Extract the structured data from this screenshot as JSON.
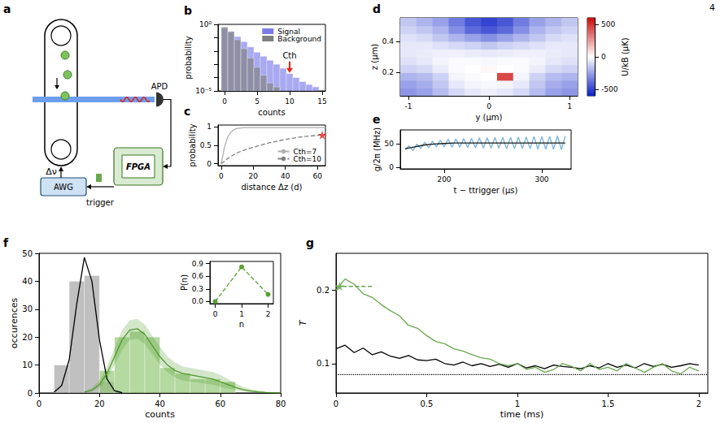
{
  "page_number": "4",
  "diagram": {
    "panel": "a",
    "labels": {
      "detector": "APD",
      "controller": "FPGA",
      "generator": "AWG",
      "trigger": "trigger",
      "detuning": "Δν"
    }
  },
  "chart_data": [
    {
      "panel": "b",
      "type": "histogram",
      "log": "y",
      "x_label": "counts",
      "y_label": "probability",
      "bins": [
        -0.5,
        0.5,
        1.5,
        2.5,
        3.5,
        4.5,
        5.5,
        6.5,
        7.5,
        8.5,
        9.5,
        10.5,
        11.5,
        12.5,
        13.5,
        14.5
      ],
      "series": [
        {
          "name": "Signal",
          "color": "#7b7bea",
          "values": [
            0.5,
            0.3,
            0.12,
            0.05,
            0.02,
            0.008,
            0.004,
            0.002,
            0.001,
            0.0005,
            0.0002,
            0.0001,
            5e-05,
            3e-05,
            2e-05
          ]
        },
        {
          "name": "Background",
          "color": "#7f7f7f",
          "values": [
            0.65,
            0.28,
            0.07,
            0.015,
            0.003,
            0.0006,
            0.00015,
            4e-05,
            2e-05,
            null,
            null,
            null,
            null,
            null,
            null
          ]
        }
      ],
      "xlim": [
        -1,
        15.5
      ],
      "xticks": [
        0,
        5,
        10,
        15
      ],
      "ylim": [
        1e-05,
        1
      ],
      "yticks": [
        {
          "value": 1e-05,
          "label": "10⁻⁵"
        },
        {
          "value": 1,
          "label": "10⁰"
        }
      ],
      "legend": "upper right",
      "annotations": [
        {
          "text": "Cth",
          "x": 10,
          "y": 0.0002,
          "color": "#e8201a"
        }
      ]
    },
    {
      "panel": "c",
      "type": "line",
      "x_label": "distance Δz (d)",
      "y_label": "probability",
      "x": [
        0,
        2,
        4,
        6,
        8,
        10,
        15,
        20,
        30,
        40,
        50,
        60,
        65
      ],
      "series": [
        {
          "name": "Cth=7",
          "color": "#b0b0b0",
          "line_style": "solid",
          "values": [
            0,
            0.45,
            0.72,
            0.86,
            0.93,
            0.96,
            0.98,
            0.98,
            0.98,
            0.98,
            0.98,
            0.98,
            0.98
          ]
        },
        {
          "name": "Cth=10",
          "color": "#808080",
          "line_style": "dashed",
          "values": [
            0,
            0.07,
            0.14,
            0.2,
            0.25,
            0.3,
            0.38,
            0.45,
            0.57,
            0.66,
            0.73,
            0.77,
            0.79
          ]
        }
      ],
      "xlim": [
        -2,
        65
      ],
      "xticks": [
        0,
        20,
        40,
        60
      ],
      "ylim": [
        -0.05,
        1.05
      ],
      "yticks": [
        0,
        0.5,
        1
      ],
      "legend": "lower right",
      "points": [
        {
          "x": 63,
          "y": 0.78,
          "marker": "star",
          "color": "#e8201a"
        }
      ]
    },
    {
      "panel": "d",
      "type": "heatmap",
      "x_label": "y (μm)",
      "y_label": "z (μm)",
      "x_edges": [
        -1.1,
        -0.9,
        -0.7,
        -0.5,
        -0.3,
        -0.1,
        0.1,
        0.3,
        0.5,
        0.7,
        0.9,
        1.1
      ],
      "y_edges": [
        0.05,
        0.1,
        0.15,
        0.2,
        0.25,
        0.3,
        0.35,
        0.4,
        0.45,
        0.5,
        0.55
      ],
      "cells": [
        [
          -280,
          -250,
          -180,
          -100,
          -60,
          -40,
          -60,
          -100,
          -180,
          -250,
          -280
        ],
        [
          -250,
          -220,
          -150,
          -60,
          -30,
          -20,
          -30,
          -60,
          -150,
          -220,
          -250
        ],
        [
          -200,
          -180,
          -120,
          -30,
          -10,
          0,
          450,
          -30,
          -120,
          -180,
          -200
        ],
        [
          -120,
          -100,
          -50,
          -10,
          0,
          20,
          0,
          -10,
          -50,
          -100,
          -120
        ],
        [
          -80,
          -60,
          -30,
          -10,
          -10,
          -20,
          -10,
          -10,
          -30,
          -60,
          -80
        ],
        [
          -60,
          -50,
          -40,
          -40,
          -50,
          -60,
          -50,
          -40,
          -40,
          -50,
          -60
        ],
        [
          -60,
          -60,
          -80,
          -100,
          -120,
          -150,
          -120,
          -100,
          -80,
          -60,
          -60
        ],
        [
          -80,
          -100,
          -150,
          -200,
          -250,
          -300,
          -250,
          -200,
          -150,
          -100,
          -80
        ],
        [
          -120,
          -150,
          -200,
          -300,
          -400,
          -450,
          -400,
          -300,
          -200,
          -150,
          -120
        ],
        [
          -150,
          -200,
          -250,
          -350,
          -450,
          -500,
          -450,
          -350,
          -250,
          -200,
          -150
        ]
      ],
      "xlim": [
        -1.1,
        1.1
      ],
      "xticks": [
        -1,
        0,
        1
      ],
      "ylim": [
        0.05,
        0.55
      ],
      "yticks": [
        0.2,
        0.4
      ],
      "colorbar": {
        "label": "U/kB (μK)",
        "range": [
          -600,
          600
        ],
        "ticks": [
          -500,
          0,
          500
        ]
      }
    },
    {
      "panel": "e",
      "type": "line",
      "x_label": "t − ttrigger (μs)",
      "y_label": "g/2π (MHz)",
      "series": [
        {
          "color": "#7ab3d9",
          "x": [
            160,
            164,
            168,
            172,
            176,
            180,
            184,
            188,
            192,
            196,
            200,
            204,
            208,
            212,
            216,
            220,
            224,
            228,
            232,
            236,
            240,
            244,
            248,
            252,
            256,
            260,
            264,
            268,
            272,
            276,
            280,
            284,
            288,
            292,
            296,
            300,
            304,
            308,
            312,
            316,
            320,
            324
          ],
          "values": [
            38,
            46,
            36,
            50,
            40,
            54,
            42,
            56,
            44,
            58,
            44,
            60,
            43,
            61,
            43,
            62,
            42,
            62,
            42,
            63,
            41,
            63,
            41,
            64,
            41,
            64,
            40,
            64,
            40,
            65,
            40,
            65,
            40,
            66,
            39,
            66,
            39,
            66,
            39,
            67,
            38,
            67
          ]
        },
        {
          "color": "#1a1a1a",
          "x": [
            160,
            170,
            180,
            190,
            200,
            210,
            220,
            240,
            260,
            280,
            300,
            324
          ],
          "values": [
            40,
            44,
            48,
            50,
            51,
            52,
            52,
            52,
            52,
            52,
            52,
            52
          ]
        }
      ],
      "xlim": [
        155,
        330
      ],
      "xticks": [
        200,
        300
      ],
      "ylim": [
        -3,
        80
      ],
      "yticks": [
        0,
        50
      ]
    },
    {
      "panel": "f",
      "type": "histogram",
      "x_label": "counts",
      "y_label": "occurences",
      "series": [
        {
          "color": "#9e9e9e",
          "bins": [
            5,
            10,
            15,
            20,
            25
          ],
          "values": [
            10,
            40,
            42,
            4
          ]
        },
        {
          "color": "#8cc46e",
          "bins": [
            20,
            25,
            30,
            35,
            40,
            45,
            50,
            55,
            60,
            65
          ],
          "values": [
            8,
            20,
            22,
            20,
            9,
            7,
            5,
            5,
            4
          ]
        }
      ],
      "curves": [
        {
          "color": "#000000",
          "x": [
            5,
            7.5,
            10,
            12.5,
            15,
            17.5,
            20,
            22.5,
            25,
            27.5
          ],
          "values": [
            0.3,
            2.7,
            12,
            32,
            48.5,
            40,
            19,
            5,
            0.8,
            0.1
          ]
        },
        {
          "color": "#4f9a2a",
          "x": [
            15,
            17.5,
            20,
            22.5,
            25,
            27.5,
            30,
            32.5,
            35,
            37.5,
            40,
            42.5,
            45,
            47.5,
            50,
            52.5,
            55,
            57.5,
            60,
            62.5,
            65,
            67.5,
            70,
            72.5,
            75,
            77.5,
            80
          ],
          "values": [
            0.3,
            1,
            3,
            7,
            13,
            19,
            22.5,
            23,
            21,
            17,
            13,
            10,
            8,
            7,
            6.5,
            6,
            5.5,
            5,
            4,
            3,
            2,
            1.2,
            0.7,
            0.4,
            0.2,
            0.1,
            0.05
          ],
          "band_lower": [
            0.1,
            0.5,
            1.8,
            5,
            10,
            15.5,
            19,
            19.5,
            17.5,
            14,
            10,
            7.5,
            5.5,
            4.5,
            4,
            3.8,
            3.3,
            3,
            2.2,
            1.5,
            1,
            0.5,
            0.3,
            0.15,
            0.05,
            0.02,
            0.01
          ],
          "band_upper": [
            0.6,
            1.8,
            4.5,
            9.5,
            16,
            22.5,
            26,
            26.5,
            24.5,
            20.5,
            16.5,
            13,
            11,
            9.5,
            9,
            8.5,
            8,
            7.5,
            6.5,
            5,
            3.5,
            2.2,
            1.4,
            0.8,
            0.5,
            0.3,
            0.15
          ]
        }
      ],
      "xlim": [
        0,
        80
      ],
      "xticks": [
        0,
        20,
        40,
        60,
        80
      ],
      "ylim": [
        0,
        50
      ],
      "yticks": [
        0,
        10,
        20,
        30,
        40,
        50
      ],
      "inset": {
        "type": "line",
        "x_label": "n",
        "y_label": "P(n)",
        "x": [
          0,
          1,
          2
        ],
        "series": [
          {
            "color": "#5a9e32",
            "marker": "circle",
            "line_style": "dashed",
            "values": [
              0.0,
              0.82,
              0.17
            ]
          }
        ],
        "xlim": [
          -0.2,
          2.2
        ],
        "xticks": [
          0,
          1,
          2
        ],
        "ylim": [
          -0.05,
          0.95
        ],
        "yticks": [
          {
            "value": 0,
            "label": "0.0"
          },
          0.3,
          0.6,
          0.9
        ]
      }
    },
    {
      "panel": "g",
      "type": "line",
      "x_label": "time (ms)",
      "y_label": "T",
      "x": [
        0,
        0.05,
        0.1,
        0.15,
        0.2,
        0.25,
        0.3,
        0.35,
        0.4,
        0.45,
        0.5,
        0.55,
        0.6,
        0.65,
        0.7,
        0.75,
        0.8,
        0.85,
        0.9,
        0.95,
        1,
        1.05,
        1.1,
        1.15,
        1.2,
        1.25,
        1.3,
        1.35,
        1.4,
        1.45,
        1.5,
        1.55,
        1.6,
        1.65,
        1.7,
        1.75,
        1.8,
        1.85,
        1.9,
        1.95,
        2
      ],
      "series": [
        {
          "color": "#000000",
          "values": [
            0.12,
            0.125,
            0.115,
            0.121,
            0.112,
            0.116,
            0.11,
            0.107,
            0.111,
            0.105,
            0.104,
            0.106,
            0.1,
            0.098,
            0.102,
            0.097,
            0.1,
            0.096,
            0.099,
            0.095,
            0.1,
            0.094,
            0.097,
            0.093,
            0.098,
            0.096,
            0.095,
            0.093,
            0.097,
            0.094,
            0.1,
            0.095,
            0.098,
            0.094,
            0.1,
            0.096,
            0.099,
            0.095,
            0.097,
            0.1,
            0.098
          ]
        },
        {
          "color": "#6aa84f",
          "values": [
            0.2,
            0.215,
            0.208,
            0.195,
            0.19,
            0.18,
            0.172,
            0.165,
            0.152,
            0.148,
            0.138,
            0.13,
            0.127,
            0.12,
            0.117,
            0.112,
            0.108,
            0.106,
            0.1,
            0.097,
            0.1,
            0.092,
            0.095,
            0.088,
            0.092,
            0.1,
            0.096,
            0.09,
            0.1,
            0.092,
            0.095,
            0.09,
            0.1,
            0.094,
            0.088,
            0.095,
            0.1,
            0.09,
            0.086,
            0.095,
            0.09
          ]
        }
      ],
      "xlim": [
        0,
        2.05
      ],
      "xticks": [
        0,
        0.5,
        1,
        1.5,
        2
      ],
      "ylim": [
        0.06,
        0.25
      ],
      "yticks": [
        0.1,
        0.2
      ],
      "reference_lines": [
        {
          "y": 0.085,
          "color": "#000000",
          "line_style": "dotted"
        }
      ],
      "segments": [
        {
          "x": [
            0,
            0.2
          ],
          "y": [
            0.205,
            0.205
          ],
          "color": "#6aa84f",
          "line_style": "dashed"
        }
      ],
      "points": [
        {
          "x": 0.02,
          "y": 0.205,
          "marker": "star",
          "color": "#6aa84f"
        }
      ]
    }
  ]
}
